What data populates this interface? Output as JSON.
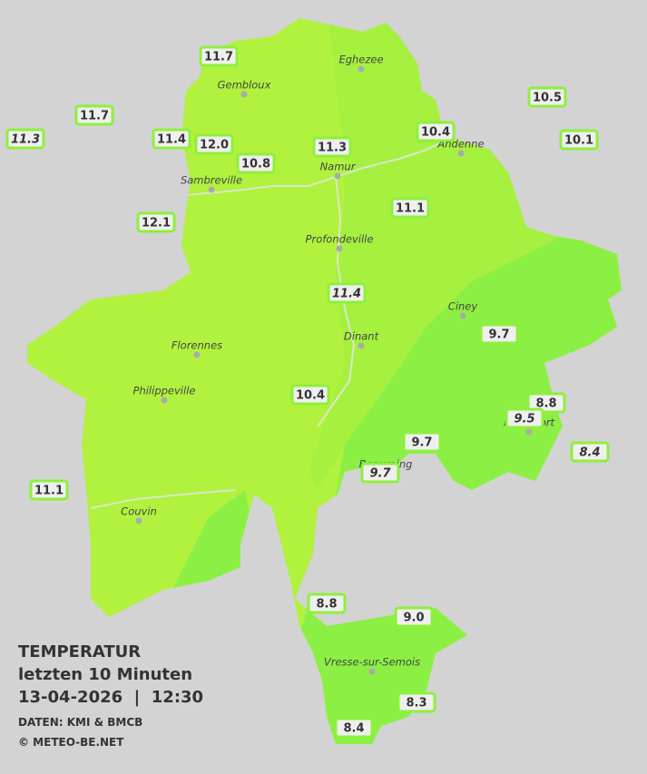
{
  "legend": {
    "title": "TEMPERATUR",
    "period": "letzten 10 Minuten",
    "datetime": "13-04-2026  |  12:30",
    "source": "DATEN: KMI & BMCB",
    "copyright": "© METEO-BE.NET"
  },
  "towns": [
    "Eghezee",
    "Gembloux",
    "Andenne",
    "Namur",
    "Sambreville",
    "Profondeville",
    "Ciney",
    "Dinant",
    "Florennes",
    "Philippeville",
    "Rochefort",
    "Beauraing",
    "Couvin",
    "Vresse-sur-Semois"
  ],
  "stations": [
    {
      "label": "11.7"
    },
    {
      "label": "11.7"
    },
    {
      "label": "11.3",
      "italic": true
    },
    {
      "label": "11.4"
    },
    {
      "label": "12.0"
    },
    {
      "label": "10.8"
    },
    {
      "label": "11.3"
    },
    {
      "label": "10.4"
    },
    {
      "label": "10.5"
    },
    {
      "label": "10.1"
    },
    {
      "label": "12.1"
    },
    {
      "label": "11.1"
    },
    {
      "label": "11.4",
      "italic": true
    },
    {
      "label": "9.7"
    },
    {
      "label": "10.4"
    },
    {
      "label": "8.8"
    },
    {
      "label": "9.5",
      "italic": true
    },
    {
      "label": "9.7"
    },
    {
      "label": "9.7",
      "italic": true
    },
    {
      "label": "8.4",
      "italic": true
    },
    {
      "label": "11.1"
    },
    {
      "label": "8.8"
    },
    {
      "label": "9.0"
    },
    {
      "label": "8.3"
    },
    {
      "label": "8.4"
    }
  ]
}
